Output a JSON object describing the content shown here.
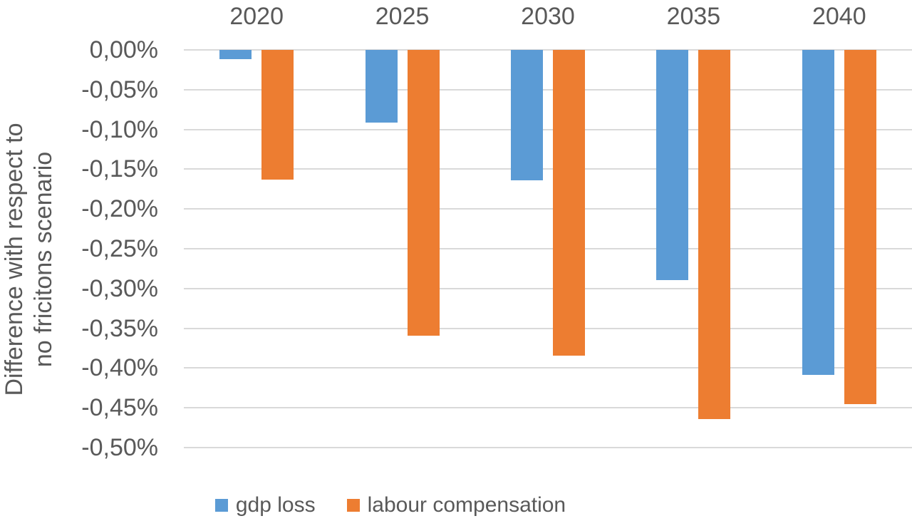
{
  "chart_data": {
    "type": "bar",
    "title": "",
    "unit": "%",
    "orientation": "vertical",
    "categories": [
      "2020",
      "2025",
      "2030",
      "2035",
      "2040"
    ],
    "series": [
      {
        "name": "gdp loss",
        "color": "#5B9BD5",
        "values": [
          -0.012,
          -0.091,
          -0.164,
          -0.289,
          -0.409
        ]
      },
      {
        "name": "labour compensation",
        "color": "#ED7D31",
        "values": [
          -0.163,
          -0.359,
          -0.384,
          -0.464,
          -0.445
        ]
      }
    ],
    "ylabel": "Difference with respect to no fricitons scenario",
    "y_ticks": [
      "0,00%",
      "-0,05%",
      "-0,10%",
      "-0,15%",
      "-0,20%",
      "-0,25%",
      "-0,30%",
      "-0,35%",
      "-0,40%",
      "-0,45%",
      "-0,50%"
    ],
    "ylim": [
      -0.5,
      0.0
    ],
    "y_tick_step": -0.05,
    "grid": true,
    "gridline_color": "#d9d9d9",
    "text_color": "#595959",
    "category_labels_position": "top",
    "legend_position": "bottom",
    "legend": [
      "gdp loss",
      "labour compensation"
    ]
  },
  "axis": {
    "ylabel_line1": "Difference with respect to",
    "ylabel_line2": "no fricitons scenario"
  }
}
